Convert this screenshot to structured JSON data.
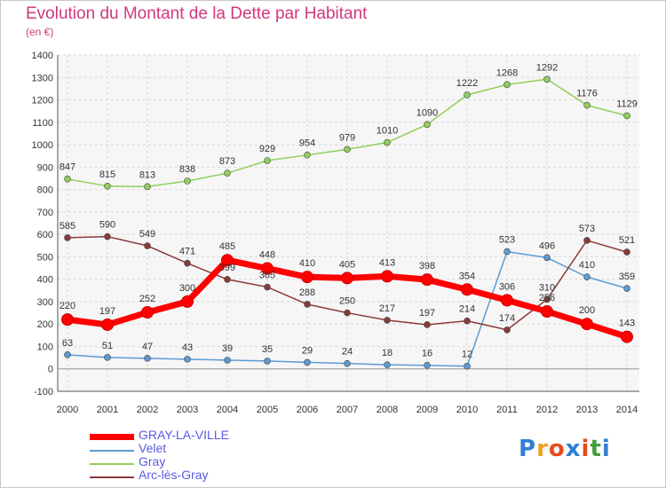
{
  "title": "Evolution du Montant de la Dette par Habitant",
  "unit": "(en €)",
  "logo": {
    "text": "Proxiti",
    "colors": [
      "#2f7fd6",
      "#f0a020",
      "#e84a1c",
      "#2f7fd6",
      "#e84a1c",
      "#40a040",
      "#2f7fd6"
    ]
  },
  "chart_data": {
    "type": "line",
    "title": "Evolution du Montant de la Dette par Habitant",
    "ylabel": "(en €)",
    "xlabel": "",
    "x": [
      "2000",
      "2001",
      "2002",
      "2003",
      "2004",
      "2005",
      "2006",
      "2007",
      "2008",
      "2009",
      "2010",
      "2011",
      "2012",
      "2013",
      "2014"
    ],
    "ylim": [
      -100,
      1400
    ],
    "yticks": [
      -100,
      0,
      100,
      200,
      300,
      400,
      500,
      600,
      700,
      800,
      900,
      1000,
      1100,
      1200,
      1300,
      1400
    ],
    "grid": true,
    "legend": "bottom-left",
    "series": [
      {
        "name": "GRAY-LA-VILLE",
        "color": "#ff0000",
        "values": [
          220,
          197,
          252,
          300,
          485,
          448,
          410,
          405,
          413,
          398,
          354,
          306,
          256,
          200,
          143
        ],
        "labels": [
          "220",
          "197",
          "252",
          "300",
          "485",
          "448",
          "410",
          "405",
          "413",
          "398",
          "354",
          "306",
          "256",
          "200",
          "143"
        ]
      },
      {
        "name": "Velet",
        "color": "#5b9bd5",
        "values": [
          63,
          51,
          47,
          43,
          39,
          35,
          29,
          24,
          18,
          16,
          12,
          523,
          496,
          410,
          359
        ],
        "labels": [
          "63",
          "51",
          "47",
          "43",
          "39",
          "35",
          "29",
          "24",
          "18",
          "16",
          "12",
          "523",
          "496",
          "410",
          "359"
        ]
      },
      {
        "name": "Gray",
        "color": "#8fd05a",
        "values": [
          847,
          815,
          813,
          838,
          873,
          929,
          954,
          979,
          1010,
          1090,
          1222,
          1268,
          1292,
          1176,
          1129
        ],
        "labels": [
          "847",
          "815",
          "813",
          "838",
          "873",
          "929",
          "954",
          "979",
          "1010",
          "1090",
          "1222",
          "1268",
          "1292",
          "1176",
          "1129"
        ]
      },
      {
        "name": "Arc-lès-Gray",
        "color": "#8b3a3a",
        "values": [
          585,
          590,
          549,
          471,
          399,
          365,
          288,
          250,
          217,
          197,
          214,
          174,
          310,
          573,
          521
        ],
        "labels": [
          "585",
          "590",
          "549",
          "471",
          "399",
          "365",
          "288",
          "250",
          "217",
          "197",
          "214",
          "174",
          "310",
          "573",
          "521"
        ]
      }
    ]
  }
}
